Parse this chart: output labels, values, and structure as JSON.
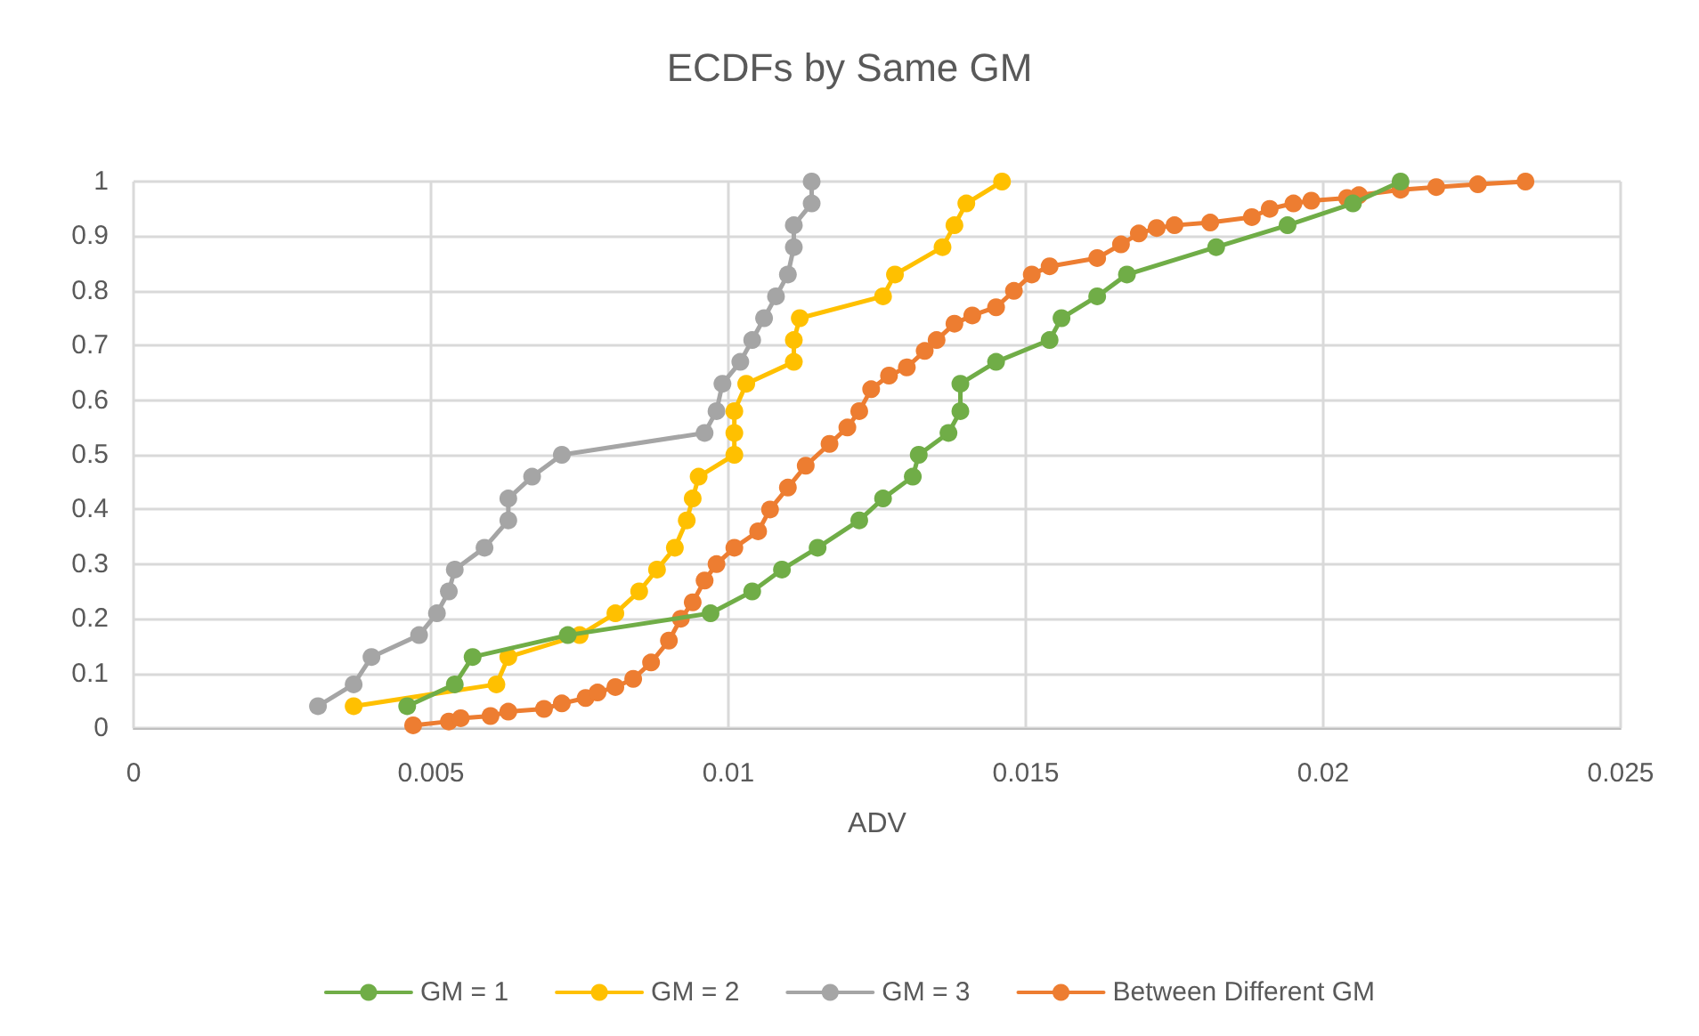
{
  "chart_data": {
    "type": "line",
    "title": "ECDFs by Same GM",
    "xlabel": "ADV",
    "xlim": [
      0,
      0.025
    ],
    "xticks": [
      0,
      0.005,
      0.01,
      0.015,
      0.02,
      0.025
    ],
    "ylim": [
      0,
      1
    ],
    "yticks": [
      0,
      0.1,
      0.2,
      0.3,
      0.4,
      0.5,
      0.6,
      0.7,
      0.8,
      0.9,
      1
    ],
    "grid": true,
    "legend": "bottom",
    "marker": "circle",
    "line_style": "solid",
    "series": [
      {
        "name": "GM = 1",
        "color": "#70ad47",
        "x": [
          0.0046,
          0.0054,
          0.0057,
          0.0073,
          0.0097,
          0.0104,
          0.0109,
          0.0115,
          0.0122,
          0.0126,
          0.0131,
          0.0132,
          0.0137,
          0.0139,
          0.0139,
          0.0145,
          0.0154,
          0.0156,
          0.0162,
          0.0167,
          0.0182,
          0.0194,
          0.0205,
          0.0213
        ],
        "values": [
          0.04,
          0.08,
          0.13,
          0.17,
          0.21,
          0.25,
          0.29,
          0.33,
          0.38,
          0.42,
          0.46,
          0.5,
          0.54,
          0.58,
          0.63,
          0.67,
          0.71,
          0.75,
          0.79,
          0.83,
          0.88,
          0.92,
          0.96,
          1
        ]
      },
      {
        "name": "GM = 2",
        "color": "#ffc000",
        "x": [
          0.0037,
          0.0061,
          0.0063,
          0.0075,
          0.0081,
          0.0085,
          0.0088,
          0.0091,
          0.0093,
          0.0094,
          0.0095,
          0.0101,
          0.0101,
          0.0101,
          0.0103,
          0.0111,
          0.0111,
          0.0112,
          0.0126,
          0.0128,
          0.0136,
          0.0138,
          0.014,
          0.0146
        ],
        "values": [
          0.04,
          0.08,
          0.13,
          0.17,
          0.21,
          0.25,
          0.29,
          0.33,
          0.38,
          0.42,
          0.46,
          0.5,
          0.54,
          0.58,
          0.63,
          0.67,
          0.71,
          0.75,
          0.79,
          0.83,
          0.88,
          0.92,
          0.96,
          1
        ]
      },
      {
        "name": "GM = 3",
        "color": "#a5a5a5",
        "x": [
          0.0031,
          0.0037,
          0.004,
          0.0048,
          0.0051,
          0.0053,
          0.0054,
          0.0059,
          0.0063,
          0.0063,
          0.0067,
          0.0072,
          0.0096,
          0.0098,
          0.0099,
          0.0102,
          0.0104,
          0.0106,
          0.0108,
          0.011,
          0.0111,
          0.0111,
          0.0114,
          0.0114
        ],
        "values": [
          0.04,
          0.08,
          0.13,
          0.17,
          0.21,
          0.25,
          0.29,
          0.33,
          0.38,
          0.42,
          0.46,
          0.5,
          0.54,
          0.58,
          0.63,
          0.67,
          0.71,
          0.75,
          0.79,
          0.83,
          0.88,
          0.92,
          0.96,
          1
        ]
      },
      {
        "name": "Between Different GM",
        "color": "#ed7d31",
        "x": [
          0.0047,
          0.0053,
          0.0055,
          0.006,
          0.0063,
          0.0069,
          0.0072,
          0.0076,
          0.0078,
          0.0081,
          0.0084,
          0.0087,
          0.009,
          0.0092,
          0.0094,
          0.0096,
          0.0098,
          0.0101,
          0.0105,
          0.0107,
          0.011,
          0.0113,
          0.0117,
          0.012,
          0.0122,
          0.0124,
          0.0127,
          0.013,
          0.0133,
          0.0135,
          0.0138,
          0.0141,
          0.0145,
          0.0148,
          0.0151,
          0.0154,
          0.0162,
          0.0166,
          0.0169,
          0.0172,
          0.0175,
          0.0181,
          0.0188,
          0.0191,
          0.0195,
          0.0198,
          0.0204,
          0.0206,
          0.0213,
          0.0219,
          0.0226,
          0.0234
        ],
        "values": [
          0.005,
          0.012,
          0.018,
          0.022,
          0.03,
          0.035,
          0.045,
          0.055,
          0.065,
          0.075,
          0.09,
          0.12,
          0.16,
          0.2,
          0.23,
          0.27,
          0.3,
          0.33,
          0.36,
          0.4,
          0.44,
          0.48,
          0.52,
          0.55,
          0.58,
          0.62,
          0.645,
          0.66,
          0.69,
          0.71,
          0.74,
          0.755,
          0.77,
          0.8,
          0.83,
          0.845,
          0.86,
          0.885,
          0.905,
          0.915,
          0.92,
          0.925,
          0.935,
          0.95,
          0.96,
          0.965,
          0.97,
          0.975,
          0.985,
          0.99,
          0.995,
          1
        ]
      }
    ]
  }
}
